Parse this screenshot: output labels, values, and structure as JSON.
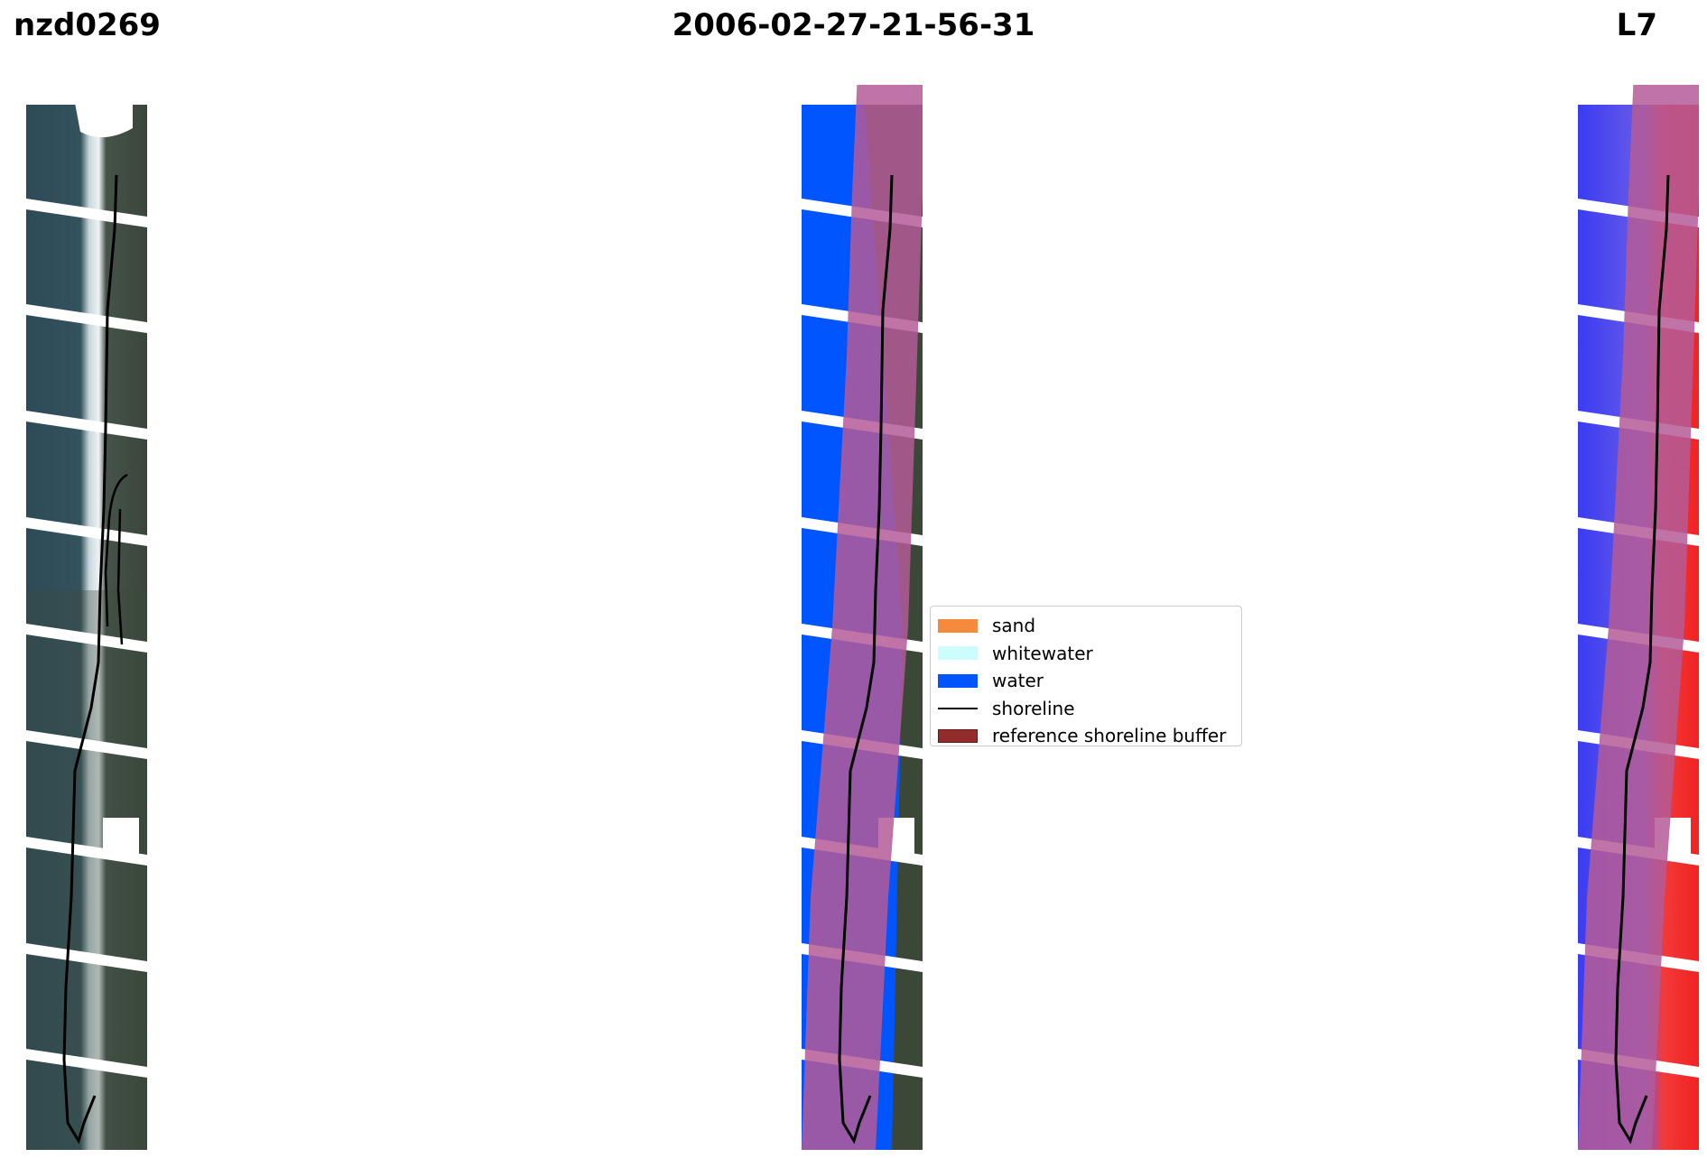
{
  "header": {
    "site_id": "nzd0269",
    "date": "2006-02-27-21-56-31",
    "satellite": "L7"
  },
  "legend": {
    "items": [
      {
        "label": "sand",
        "color": "#f58a3c",
        "type": "patch"
      },
      {
        "label": "whitewater",
        "color": "#ccfcfc",
        "type": "patch"
      },
      {
        "label": "water",
        "color": "#0055ff",
        "type": "patch"
      },
      {
        "label": "shoreline",
        "color": "#000000",
        "type": "line"
      },
      {
        "label": "reference shoreline buffer",
        "color": "#922b2b",
        "type": "patch"
      }
    ]
  },
  "colors": {
    "land": "#3c4a3a",
    "ocean_rgb": "#2b4654",
    "surf": "#dfe8ee",
    "buffer_overlay": "#b45a96",
    "mndwi_positive": "#3a3cf2",
    "mndwi_negative": "#f22222",
    "no_data": "#ffffff"
  }
}
